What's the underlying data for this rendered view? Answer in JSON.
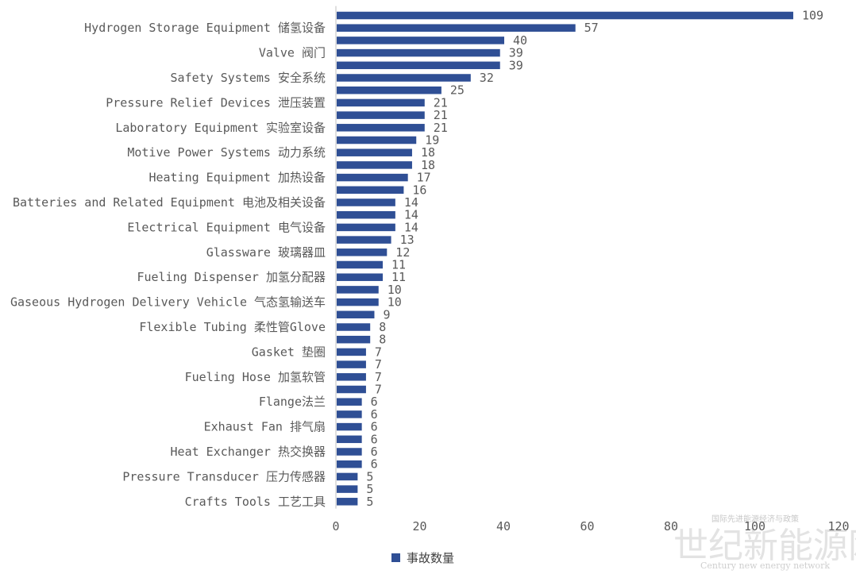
{
  "chart_data": {
    "type": "bar",
    "orientation": "horizontal",
    "series": [
      {
        "name": "事故数量",
        "color": "#2f4f95",
        "values": [
          109,
          57,
          40,
          39,
          39,
          32,
          25,
          21,
          21,
          21,
          19,
          18,
          18,
          17,
          16,
          14,
          14,
          14,
          13,
          12,
          11,
          11,
          10,
          10,
          9,
          8,
          8,
          7,
          7,
          7,
          7,
          6,
          6,
          6,
          6,
          6,
          6,
          5,
          5,
          5
        ]
      }
    ],
    "category_labels": [
      {
        "index": 1,
        "text": "Hydrogen Storage Equipment 储氢设备"
      },
      {
        "index": 3,
        "text": "Valve 阀门"
      },
      {
        "index": 5,
        "text": "Safety Systems 安全系统"
      },
      {
        "index": 7,
        "text": "Pressure Relief Devices 泄压装置"
      },
      {
        "index": 9,
        "text": "Laboratory Equipment 实验室设备"
      },
      {
        "index": 11,
        "text": "Motive Power Systems 动力系统"
      },
      {
        "index": 13,
        "text": "Heating Equipment 加热设备"
      },
      {
        "index": 15,
        "text": "Batteries and Related Equipment 电池及相关设备"
      },
      {
        "index": 17,
        "text": "Electrical Equipment 电气设备"
      },
      {
        "index": 19,
        "text": "Glassware 玻璃器皿"
      },
      {
        "index": 21,
        "text": "Fueling Dispenser 加氢分配器"
      },
      {
        "index": 23,
        "text": "Gaseous Hydrogen Delivery Vehicle 气态氢输送车"
      },
      {
        "index": 25,
        "text": "Flexible Tubing 柔性管Glove"
      },
      {
        "index": 27,
        "text": "Gasket 垫圈"
      },
      {
        "index": 29,
        "text": "Fueling Hose 加氢软管"
      },
      {
        "index": 31,
        "text": "Flange法兰"
      },
      {
        "index": 33,
        "text": "Exhaust Fan 排气扇"
      },
      {
        "index": 35,
        "text": "Heat Exchanger 热交换器"
      },
      {
        "index": 37,
        "text": "Pressure Transducer 压力传感器"
      },
      {
        "index": 39,
        "text": "Crafts Tools 工艺工具"
      }
    ],
    "x_ticks": [
      0,
      20,
      40,
      60,
      80,
      100,
      120
    ],
    "xlim": [
      0,
      120
    ],
    "grid": false,
    "legend": {
      "position": "bottom",
      "label": "事故数量"
    },
    "title": "",
    "xlabel": "",
    "ylabel": ""
  },
  "watermark": {
    "main": "世纪新能源网",
    "sub": "Century new energy network",
    "top": "国际先进能源经济与政策"
  }
}
